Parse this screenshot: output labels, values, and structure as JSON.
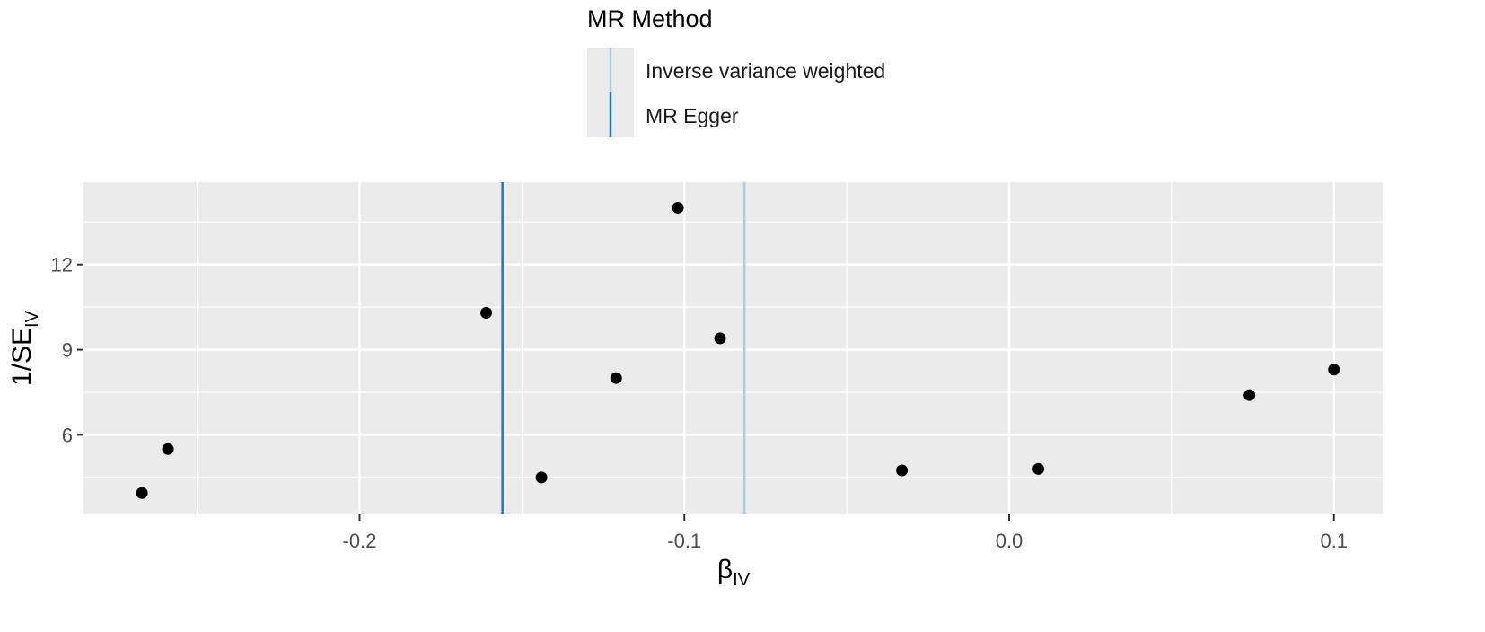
{
  "chart_data": {
    "type": "scatter",
    "title": "",
    "xlabel": "β",
    "xlabel_sub": "IV",
    "ylabel": "1/SE",
    "ylabel_sub": "IV",
    "xlim": [
      -0.285,
      0.115
    ],
    "ylim": [
      3.2,
      14.9
    ],
    "x_ticks": [
      -0.2,
      -0.1,
      0.0,
      0.1
    ],
    "x_tick_labels": [
      "-0.2",
      "-0.1",
      "0.0",
      "0.1"
    ],
    "x_minor_ticks": [
      -0.25,
      -0.15,
      -0.05,
      0.05
    ],
    "y_ticks": [
      6,
      9,
      12
    ],
    "y_tick_labels": [
      "6",
      "9",
      "12"
    ],
    "y_minor_ticks": [
      4.5,
      7.5,
      10.5,
      13.5
    ],
    "grid": true,
    "panel_background": "#ebebeb",
    "grid_color": "#ffffff",
    "point_color": "#000000",
    "points": [
      {
        "x": -0.267,
        "y": 3.95
      },
      {
        "x": -0.259,
        "y": 5.5
      },
      {
        "x": -0.161,
        "y": 10.3
      },
      {
        "x": -0.144,
        "y": 4.5
      },
      {
        "x": -0.121,
        "y": 8.0
      },
      {
        "x": -0.102,
        "y": 14.0
      },
      {
        "x": -0.089,
        "y": 9.4
      },
      {
        "x": -0.033,
        "y": 4.75
      },
      {
        "x": 0.009,
        "y": 4.8
      },
      {
        "x": 0.074,
        "y": 7.4
      },
      {
        "x": 0.1,
        "y": 8.3
      }
    ],
    "lines": [
      {
        "name": "Inverse variance weighted",
        "x": -0.0815,
        "color": "#a6cee3"
      },
      {
        "name": "MR Egger",
        "x": -0.156,
        "color": "#1f78b4"
      }
    ],
    "legend": {
      "title": "MR Method",
      "placement": "top",
      "entries": [
        "Inverse variance weighted",
        "MR Egger"
      ]
    }
  }
}
